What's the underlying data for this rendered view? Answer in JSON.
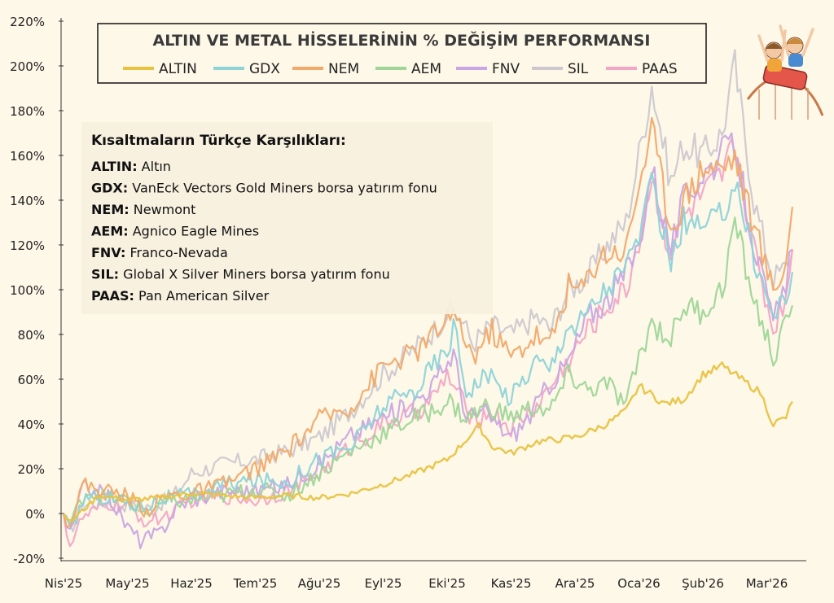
{
  "chart_data": {
    "type": "line",
    "title": "ALTIN VE METAL HİSSELERİNİN % DEĞİŞİM PERFORMANSI",
    "xlabel": "",
    "ylabel": "",
    "ylim": [
      -20,
      220
    ],
    "yticks": [
      -20,
      0,
      20,
      40,
      60,
      80,
      100,
      120,
      140,
      160,
      180,
      200,
      220
    ],
    "yticklabels": [
      "-20%",
      "0%",
      "20%",
      "40%",
      "60%",
      "80%",
      "100%",
      "120%",
      "140%",
      "160%",
      "180%",
      "200%",
      "220%"
    ],
    "xlim": [
      "2025-04-01",
      "2026-03-20"
    ],
    "categories": [
      "Nis'25",
      "May'25",
      "Haz'25",
      "Tem'25",
      "Ağu'25",
      "Eyl'25",
      "Eki'25",
      "Kas'25",
      "Ara'25",
      "Oca'26",
      "Şub'26",
      "Mar'26"
    ],
    "x": [
      "2025-04-01",
      "2025-05-01",
      "2025-06-01",
      "2025-07-01",
      "2025-08-01",
      "2025-09-01",
      "2025-10-01",
      "2025-11-01",
      "2025-12-01",
      "2026-01-01",
      "2026-02-01",
      "2026-03-01"
    ],
    "grid": false,
    "legend_position": "top",
    "series": [
      {
        "name": "ALTIN",
        "color": "#e8c341",
        "values": [
          -2,
          8,
          9,
          7,
          9,
          13,
          32,
          30,
          36,
          48,
          60,
          45
        ],
        "anchors": [
          [
            0,
            0
          ],
          [
            0.1,
            -4
          ],
          [
            0.55,
            8
          ],
          [
            1,
            6
          ],
          [
            1.5,
            7
          ],
          [
            2,
            9
          ],
          [
            2.5,
            8
          ],
          [
            3,
            7
          ],
          [
            3.5,
            8
          ],
          [
            4,
            7
          ],
          [
            4.5,
            9
          ],
          [
            5,
            13
          ],
          [
            5.5,
            18
          ],
          [
            6,
            24
          ],
          [
            6.3,
            33
          ],
          [
            6.5,
            39
          ],
          [
            6.7,
            30
          ],
          [
            7,
            27
          ],
          [
            7.4,
            32
          ],
          [
            8,
            34
          ],
          [
            8.5,
            40
          ],
          [
            8.8,
            46
          ],
          [
            9,
            57
          ],
          [
            9.4,
            49
          ],
          [
            9.7,
            51
          ],
          [
            10,
            62
          ],
          [
            10.3,
            66
          ],
          [
            10.7,
            58
          ],
          [
            10.9,
            54
          ],
          [
            11.1,
            40
          ],
          [
            11.3,
            43
          ],
          [
            11.4,
            50
          ]
        ]
      },
      {
        "name": "GDX",
        "color": "#8dd3d8",
        "values": [
          -6,
          10,
          8,
          15,
          25,
          50,
          65,
          55,
          90,
          130,
          140,
          108
        ],
        "anchors": [
          [
            0,
            0
          ],
          [
            0.1,
            -8
          ],
          [
            0.35,
            8
          ],
          [
            0.7,
            7
          ],
          [
            1,
            5
          ],
          [
            1.2,
            3
          ],
          [
            1.6,
            7
          ],
          [
            2,
            8
          ],
          [
            2.5,
            13
          ],
          [
            3,
            15
          ],
          [
            3.5,
            14
          ],
          [
            4,
            25
          ],
          [
            4.5,
            30
          ],
          [
            5,
            48
          ],
          [
            5.5,
            55
          ],
          [
            5.8,
            67
          ],
          [
            6,
            72
          ],
          [
            6.1,
            85
          ],
          [
            6.3,
            55
          ],
          [
            6.6,
            62
          ],
          [
            7,
            52
          ],
          [
            7.4,
            69
          ],
          [
            7.6,
            64
          ],
          [
            7.9,
            86
          ],
          [
            8,
            83
          ],
          [
            8.4,
            98
          ],
          [
            8.8,
            110
          ],
          [
            9,
            125
          ],
          [
            9.2,
            145
          ],
          [
            9.5,
            113
          ],
          [
            9.7,
            130
          ],
          [
            10,
            127
          ],
          [
            10.3,
            133
          ],
          [
            10.5,
            150
          ],
          [
            10.8,
            115
          ],
          [
            11.1,
            88
          ],
          [
            11.3,
            98
          ],
          [
            11.4,
            108
          ]
        ]
      },
      {
        "name": "NEM",
        "color": "#f2a96a",
        "values": [
          -4,
          13,
          9,
          18,
          40,
          72,
          85,
          75,
          115,
          150,
          160,
          135
        ],
        "anchors": [
          [
            0,
            0
          ],
          [
            0.1,
            -5
          ],
          [
            0.3,
            13
          ],
          [
            0.7,
            10
          ],
          [
            1,
            8
          ],
          [
            1.3,
            1
          ],
          [
            1.6,
            8
          ],
          [
            2,
            9
          ],
          [
            2.5,
            13
          ],
          [
            3,
            20
          ],
          [
            3.5,
            28
          ],
          [
            4,
            42
          ],
          [
            4.5,
            48
          ],
          [
            5,
            66
          ],
          [
            5.5,
            72
          ],
          [
            5.8,
            80
          ],
          [
            6,
            88
          ],
          [
            6.2,
            84
          ],
          [
            6.4,
            70
          ],
          [
            6.7,
            82
          ],
          [
            7,
            70
          ],
          [
            7.4,
            80
          ],
          [
            7.6,
            75
          ],
          [
            7.9,
            102
          ],
          [
            8.1,
            100
          ],
          [
            8.4,
            116
          ],
          [
            8.8,
            118
          ],
          [
            9,
            148
          ],
          [
            9.2,
            172
          ],
          [
            9.5,
            128
          ],
          [
            9.7,
            140
          ],
          [
            10,
            155
          ],
          [
            10.3,
            155
          ],
          [
            10.5,
            160
          ],
          [
            10.8,
            128
          ],
          [
            11.1,
            100
          ],
          [
            11.3,
            112
          ],
          [
            11.4,
            137
          ]
        ]
      },
      {
        "name": "AEM",
        "color": "#9fd697",
        "values": [
          0,
          8,
          8,
          10,
          20,
          40,
          48,
          44,
          55,
          80,
          110,
          90
        ],
        "anchors": [
          [
            0,
            0
          ],
          [
            0.1,
            -5
          ],
          [
            0.35,
            10
          ],
          [
            0.7,
            7
          ],
          [
            1,
            6
          ],
          [
            1.3,
            0
          ],
          [
            1.6,
            5
          ],
          [
            2,
            6
          ],
          [
            2.5,
            8
          ],
          [
            3,
            11
          ],
          [
            3.5,
            8
          ],
          [
            4,
            18
          ],
          [
            4.5,
            28
          ],
          [
            5,
            36
          ],
          [
            5.5,
            43
          ],
          [
            5.8,
            46
          ],
          [
            6,
            51
          ],
          [
            6.3,
            42
          ],
          [
            6.6,
            48
          ],
          [
            7,
            43
          ],
          [
            7.4,
            48
          ],
          [
            7.6,
            45
          ],
          [
            7.9,
            62
          ],
          [
            8.2,
            55
          ],
          [
            8.5,
            58
          ],
          [
            8.8,
            48
          ],
          [
            9,
            70
          ],
          [
            9.2,
            85
          ],
          [
            9.5,
            78
          ],
          [
            9.7,
            93
          ],
          [
            10,
            90
          ],
          [
            10.3,
            100
          ],
          [
            10.5,
            130
          ],
          [
            10.8,
            95
          ],
          [
            11.1,
            70
          ],
          [
            11.3,
            84
          ],
          [
            11.4,
            93
          ]
        ]
      },
      {
        "name": "FNV",
        "color": "#c9a6e3",
        "values": [
          -8,
          -10,
          5,
          8,
          18,
          42,
          60,
          40,
          95,
          140,
          150,
          118
        ],
        "anchors": [
          [
            0,
            0
          ],
          [
            0.1,
            -10
          ],
          [
            0.3,
            12
          ],
          [
            0.7,
            8
          ],
          [
            1,
            -6
          ],
          [
            1.2,
            -12
          ],
          [
            1.5,
            -9
          ],
          [
            1.8,
            4
          ],
          [
            2,
            6
          ],
          [
            2.5,
            10
          ],
          [
            3,
            10
          ],
          [
            3.5,
            13
          ],
          [
            4,
            22
          ],
          [
            4.5,
            35
          ],
          [
            5,
            43
          ],
          [
            5.4,
            48
          ],
          [
            5.8,
            58
          ],
          [
            6.1,
            72
          ],
          [
            6.3,
            43
          ],
          [
            6.6,
            45
          ],
          [
            7,
            34
          ],
          [
            7.3,
            44
          ],
          [
            7.6,
            58
          ],
          [
            7.9,
            68
          ],
          [
            8.2,
            88
          ],
          [
            8.5,
            95
          ],
          [
            8.8,
            108
          ],
          [
            9,
            120
          ],
          [
            9.2,
            155
          ],
          [
            9.5,
            118
          ],
          [
            9.7,
            140
          ],
          [
            10,
            152
          ],
          [
            10.3,
            160
          ],
          [
            10.5,
            165
          ],
          [
            10.8,
            120
          ],
          [
            11.1,
            85
          ],
          [
            11.3,
            103
          ],
          [
            11.4,
            118
          ]
        ]
      },
      {
        "name": "SIL",
        "color": "#cdc8cf",
        "values": [
          -8,
          5,
          20,
          20,
          35,
          65,
          90,
          80,
          110,
          170,
          180,
          115
        ],
        "anchors": [
          [
            0,
            0
          ],
          [
            0.1,
            -8
          ],
          [
            0.3,
            4
          ],
          [
            0.7,
            5
          ],
          [
            1,
            4
          ],
          [
            1.4,
            2
          ],
          [
            1.8,
            10
          ],
          [
            2,
            18
          ],
          [
            2.5,
            22
          ],
          [
            3,
            24
          ],
          [
            3.5,
            28
          ],
          [
            4,
            34
          ],
          [
            4.5,
            46
          ],
          [
            5,
            62
          ],
          [
            5.5,
            74
          ],
          [
            5.8,
            82
          ],
          [
            6,
            90
          ],
          [
            6.2,
            88
          ],
          [
            6.4,
            76
          ],
          [
            6.7,
            84
          ],
          [
            7,
            80
          ],
          [
            7.4,
            88
          ],
          [
            7.6,
            82
          ],
          [
            7.9,
            100
          ],
          [
            8.2,
            106
          ],
          [
            8.5,
            120
          ],
          [
            8.8,
            130
          ],
          [
            9,
            160
          ],
          [
            9.2,
            192
          ],
          [
            9.5,
            148
          ],
          [
            9.7,
            165
          ],
          [
            10,
            160
          ],
          [
            10.3,
            170
          ],
          [
            10.5,
            200
          ],
          [
            10.8,
            140
          ],
          [
            11.1,
            105
          ],
          [
            11.3,
            110
          ],
          [
            11.4,
            118
          ]
        ]
      },
      {
        "name": "PAAS",
        "color": "#f3a6c6",
        "values": [
          -15,
          0,
          5,
          5,
          15,
          40,
          55,
          45,
          85,
          120,
          150,
          115
        ],
        "anchors": [
          [
            0,
            0
          ],
          [
            0.1,
            -14
          ],
          [
            0.3,
            -2
          ],
          [
            0.7,
            4
          ],
          [
            1,
            3
          ],
          [
            1.3,
            -4
          ],
          [
            1.7,
            0
          ],
          [
            2,
            6
          ],
          [
            2.5,
            8
          ],
          [
            3,
            6
          ],
          [
            3.5,
            10
          ],
          [
            4,
            18
          ],
          [
            4.5,
            30
          ],
          [
            5,
            40
          ],
          [
            5.5,
            45
          ],
          [
            5.8,
            52
          ],
          [
            6,
            62
          ],
          [
            6.2,
            52
          ],
          [
            6.4,
            42
          ],
          [
            6.7,
            45
          ],
          [
            7,
            38
          ],
          [
            7.4,
            48
          ],
          [
            7.6,
            56
          ],
          [
            7.9,
            68
          ],
          [
            8.2,
            82
          ],
          [
            8.5,
            92
          ],
          [
            8.8,
            100
          ],
          [
            9,
            122
          ],
          [
            9.2,
            150
          ],
          [
            9.5,
            115
          ],
          [
            9.7,
            132
          ],
          [
            10,
            142
          ],
          [
            10.3,
            150
          ],
          [
            10.5,
            166
          ],
          [
            10.8,
            118
          ],
          [
            11.1,
            82
          ],
          [
            11.3,
            98
          ],
          [
            11.4,
            118
          ]
        ]
      }
    ],
    "annotation_box": {
      "heading": "Kısaltmaların Türkçe Karşılıkları:",
      "items": [
        {
          "abbr": "ALTIN:",
          "meaning": "Altın"
        },
        {
          "abbr": "GDX:",
          "meaning": "VanEck Vectors Gold Miners borsa yatırım fonu"
        },
        {
          "abbr": "NEM:",
          "meaning": "Newmont"
        },
        {
          "abbr": "AEM:",
          "meaning": "Agnico Eagle Mines"
        },
        {
          "abbr": "FNV:",
          "meaning": "Franco-Nevada"
        },
        {
          "abbr": "SIL:",
          "meaning": "Global X Silver Miners borsa yatırım fonu"
        },
        {
          "abbr": "PAAS:",
          "meaning": "Pan American Silver"
        }
      ]
    },
    "colors": {
      "background": "#fdf8e8",
      "axis": "#333333",
      "title": "#3a3a3a"
    },
    "decoration_icon": "roller-coaster-illustration"
  }
}
